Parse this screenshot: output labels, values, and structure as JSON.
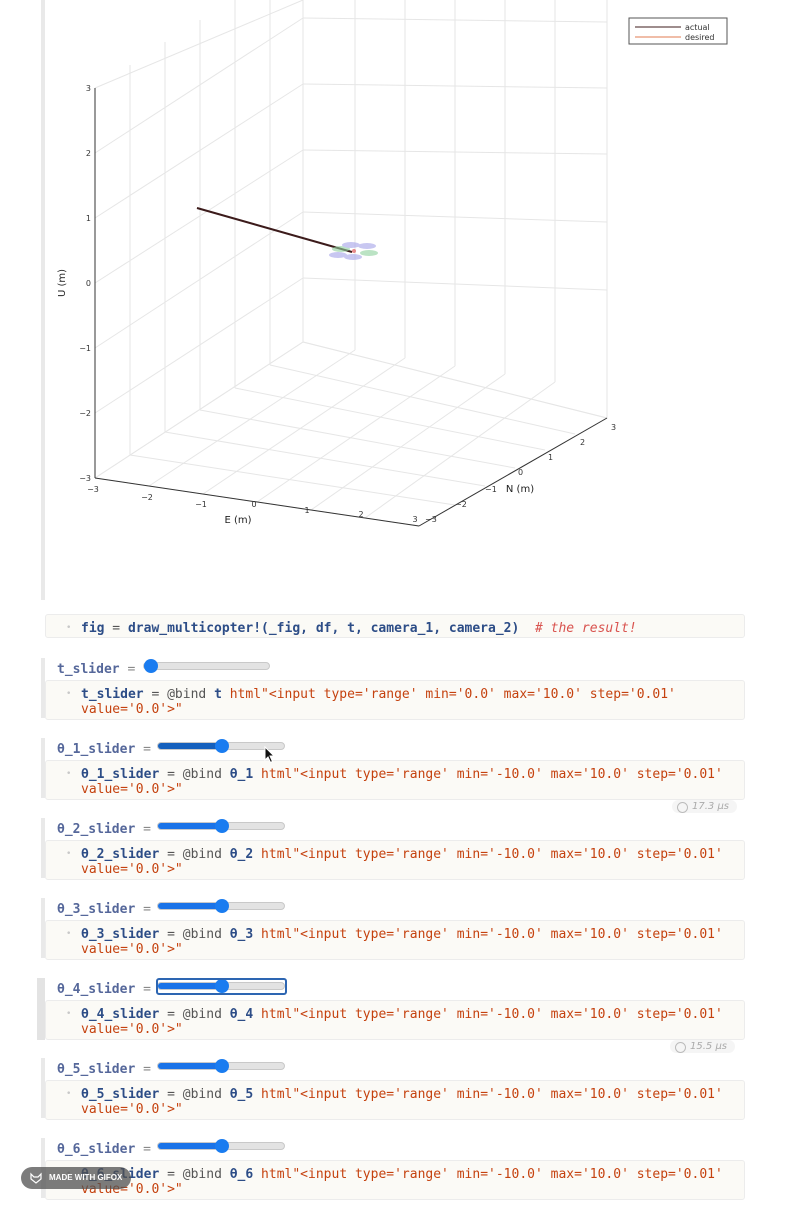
{
  "plot": {
    "axis_labels": {
      "x": "E (m)",
      "y": "N (m)",
      "z": "U (m)"
    },
    "legend": [
      "actual",
      "desired"
    ],
    "colors": {
      "actual": "#3c1b1b",
      "desired": "#e07b50"
    },
    "z_ticks": [
      "3",
      "2",
      "1",
      "0",
      "−1",
      "−2",
      "−3"
    ],
    "x_ticks": [
      "−3",
      "−2",
      "−1",
      "0",
      "1",
      "2",
      "3"
    ],
    "y_ticks": [
      "−3",
      "−2",
      "−1",
      "0",
      "1",
      "2",
      "3"
    ]
  },
  "fig_cell": {
    "var": "fig",
    "eq": " = ",
    "call": "draw_multicopter!",
    "args": "(_fig, df, t, camera_1, camera_2)",
    "comment": "# the result!"
  },
  "cells": [
    {
      "name": "t_slider",
      "bind_var": "t",
      "html_line1": "html\"<input type='range' min='0.0' max='10.0' step='0.01'",
      "html_line2": "value='0.0'>\"",
      "value": 0.0
    },
    {
      "name": "θ_1_slider",
      "bind_var": "θ_1",
      "html_line1": "html\"<input type='range' min='-10.0' max='10.0' step='0.01'",
      "html_line2": "value='0.0'>\"",
      "value": 0.0
    },
    {
      "name": "θ_2_slider",
      "bind_var": "θ_2",
      "html_line1": "html\"<input type='range' min='-10.0' max='10.0' step='0.01'",
      "html_line2": "value='0.0'>\"",
      "value": 0.0
    },
    {
      "name": "θ_3_slider",
      "bind_var": "θ_3",
      "html_line1": "html\"<input type='range' min='-10.0' max='10.0' step='0.01'",
      "html_line2": "value='0.0'>\"",
      "value": 0.0
    },
    {
      "name": "θ_4_slider",
      "bind_var": "θ_4",
      "html_line1": "html\"<input type='range' min='-10.0' max='10.0' step='0.01'",
      "html_line2": "value='0.0'>\"",
      "value": 0.0
    },
    {
      "name": "θ_5_slider",
      "bind_var": "θ_5",
      "html_line1": "html\"<input type='range' min='-10.0' max='10.0' step='0.01'",
      "html_line2": "value='0.0'>\"",
      "value": 0.0
    },
    {
      "name": "θ_6_slider",
      "bind_var": "θ_6",
      "html_line1": "html\"<input type='range' min='-10.0' max='10.0' step='0.01'",
      "html_line2": "value='0.0'>\"",
      "value": 0.0
    }
  ],
  "bind_macro": "@bind",
  "assign": " = ",
  "timings": [
    "17.3 μs",
    "15.5 μs"
  ],
  "badge": "MADE WITH GIFOX"
}
